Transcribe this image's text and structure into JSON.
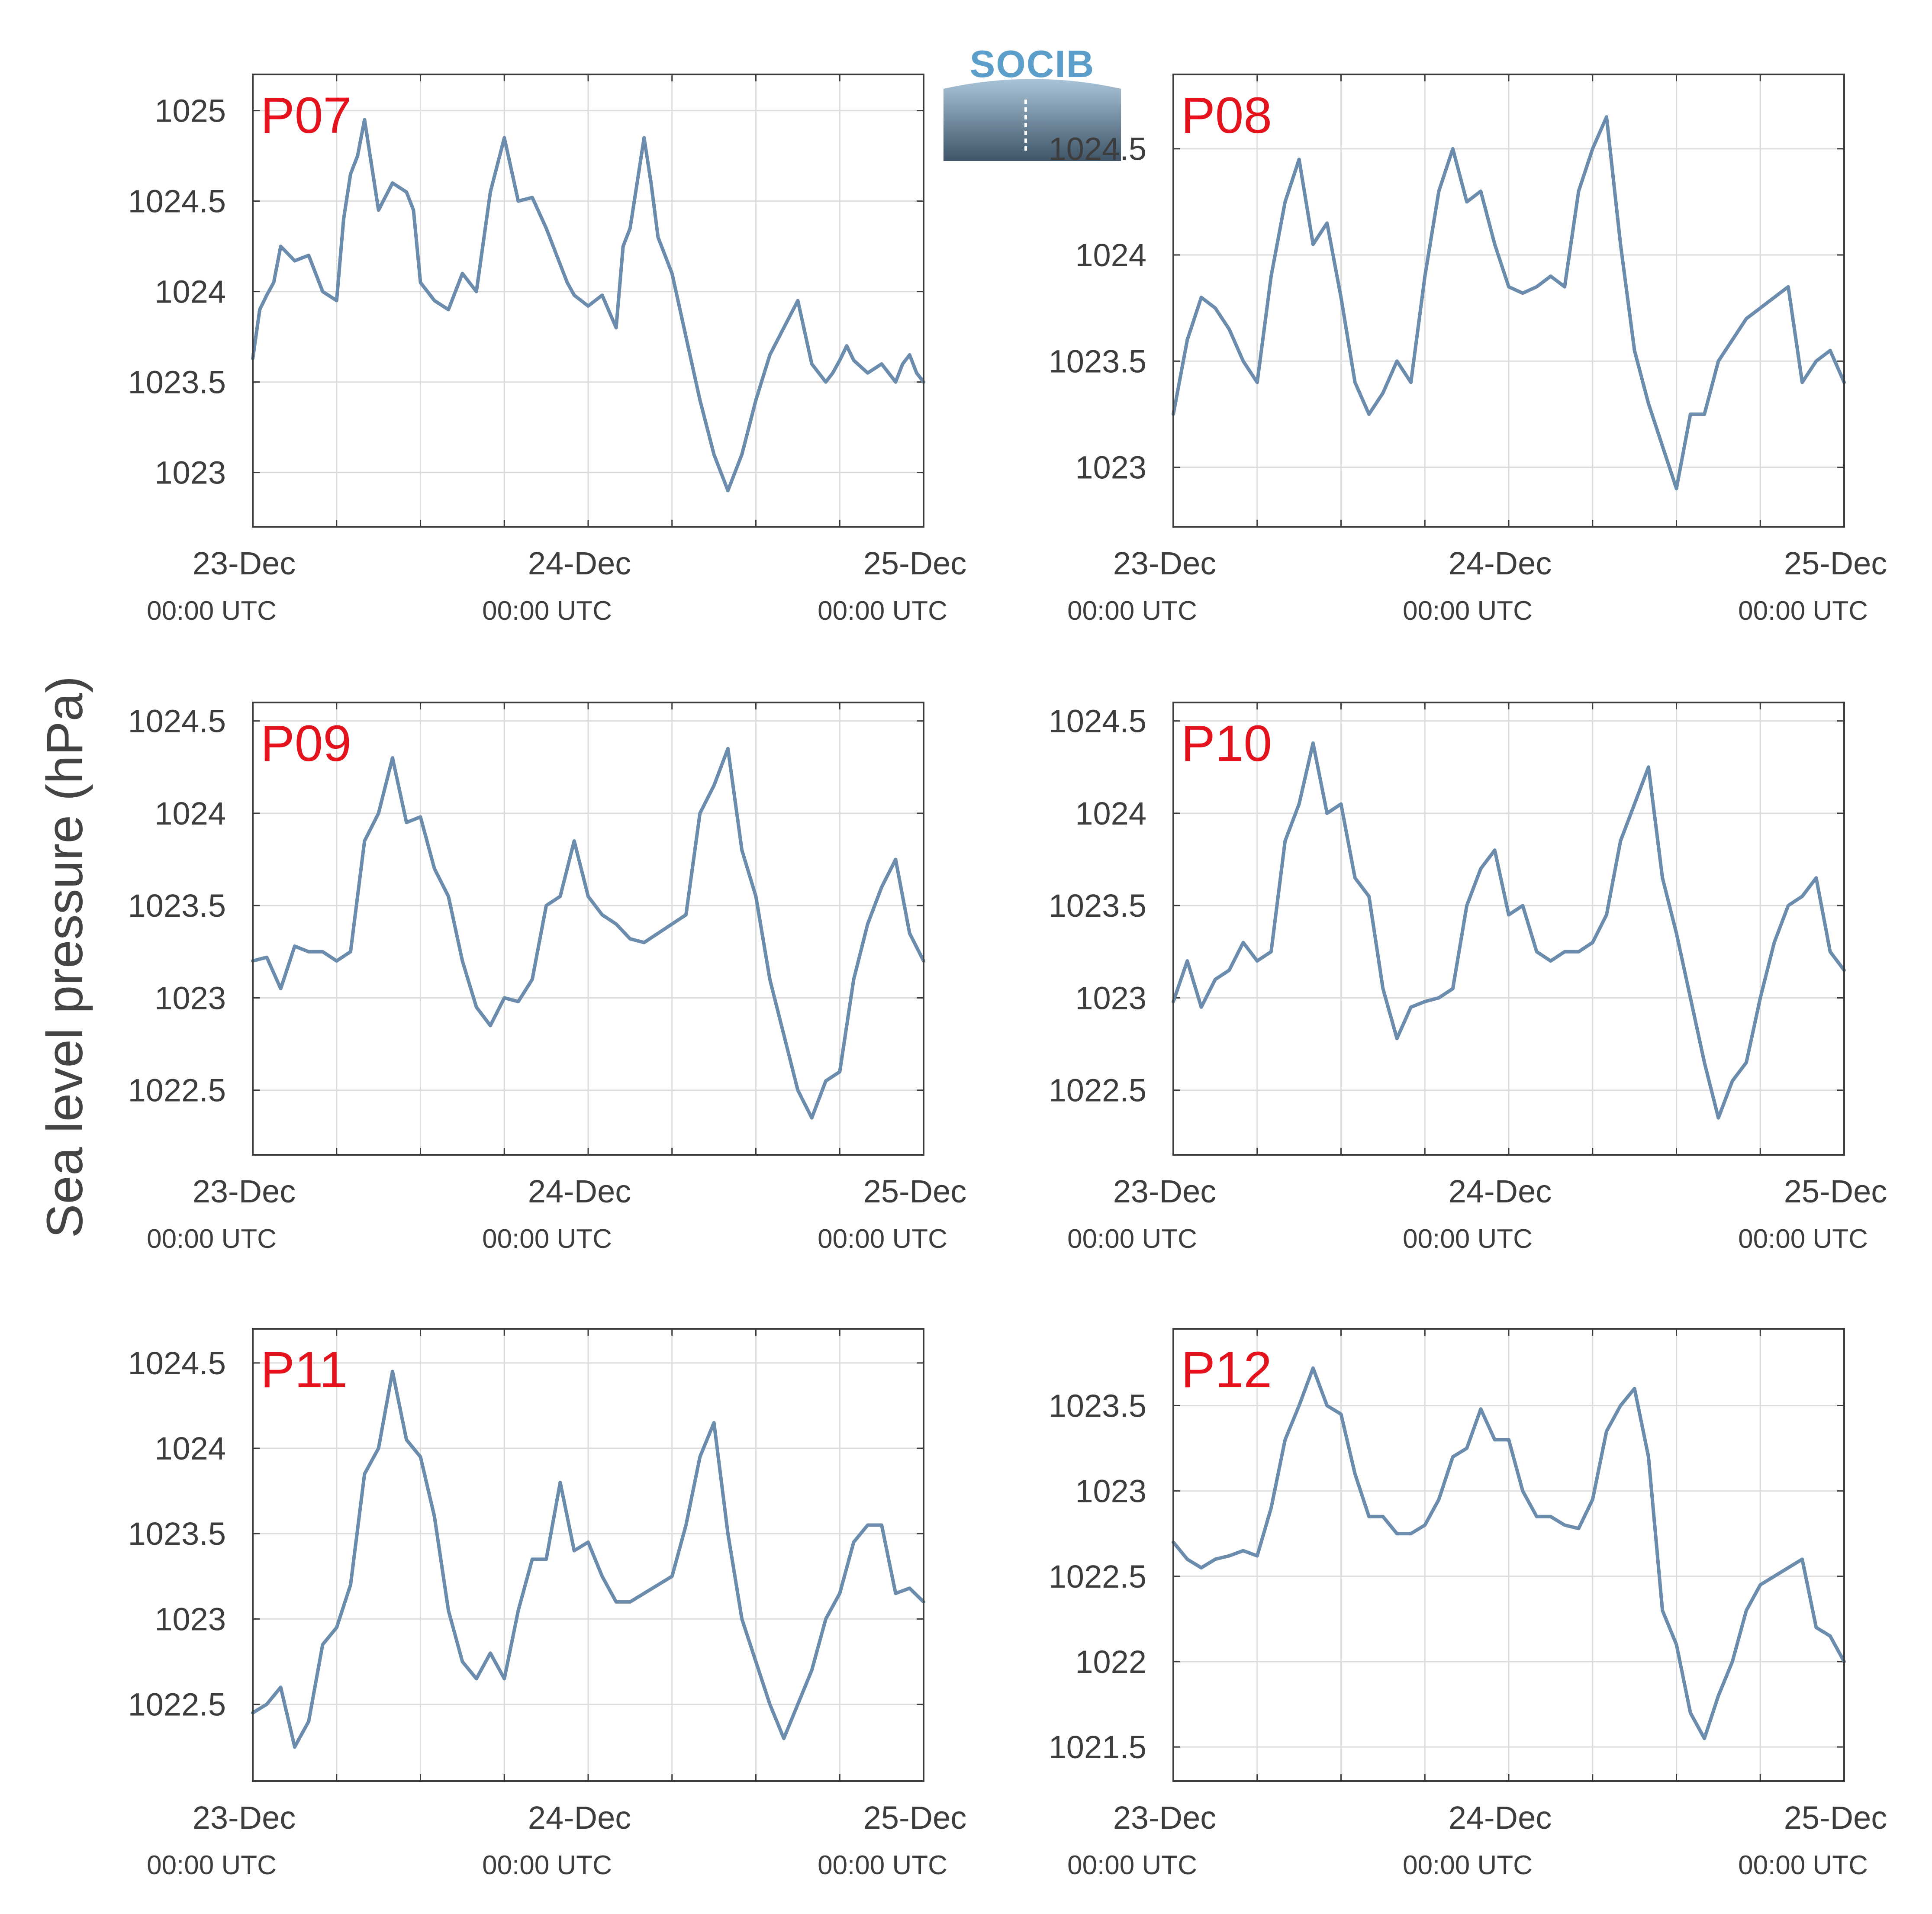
{
  "logo": {
    "text": "SOCIB",
    "color": "#5a9ec9"
  },
  "ylabel": "Sea level pressure (hPa)",
  "style": {
    "line_color": "#6b8cad",
    "panel_label_color": "#e3121c",
    "grid_color": "#dcdcdc",
    "axis_color": "#3c3c3c"
  },
  "chart_data": [
    {
      "type": "line",
      "panel_label": "P07",
      "ylim": [
        1022.7,
        1025.2
      ],
      "yticks": [
        1023,
        1023.5,
        1024,
        1024.5,
        1025
      ],
      "ytick_labels": [
        "1023",
        "1023.5",
        "1024",
        "1024.5",
        "1025"
      ],
      "xlim": [
        0,
        48
      ],
      "xticks": [
        0,
        24,
        48
      ],
      "xtick_labels": [
        "23-Dec",
        "24-Dec",
        "25-Dec"
      ],
      "xtick_sublabels": [
        "00:00 UTC",
        "00:00 UTC",
        "00:00 UTC"
      ],
      "grid": true,
      "series": [
        {
          "x": [
            0,
            0.5,
            1,
            1.5,
            2,
            3,
            4,
            5,
            6,
            6.5,
            7,
            7.5,
            8,
            9,
            10,
            11,
            11.5,
            12,
            13,
            14,
            15,
            16,
            17,
            18,
            19,
            20,
            21,
            22,
            22.5,
            23,
            24,
            25,
            26,
            26.5,
            27,
            28,
            28.5,
            29,
            30,
            31,
            32,
            33,
            34,
            35,
            36,
            37,
            38,
            39,
            40,
            41,
            41.5,
            42,
            42.5,
            43,
            44,
            45,
            46,
            46.5,
            47,
            47.5,
            48
          ],
          "y": [
            1023.63,
            1023.9,
            1023.98,
            1024.05,
            1024.25,
            1024.17,
            1024.2,
            1024.0,
            1023.95,
            1024.4,
            1024.65,
            1024.75,
            1024.95,
            1024.45,
            1024.6,
            1024.55,
            1024.45,
            1024.05,
            1023.95,
            1023.9,
            1024.1,
            1024.0,
            1024.55,
            1024.85,
            1024.5,
            1024.52,
            1024.35,
            1024.15,
            1024.05,
            1023.98,
            1023.92,
            1023.98,
            1023.8,
            1024.25,
            1024.35,
            1024.85,
            1024.6,
            1024.3,
            1024.1,
            1023.75,
            1023.4,
            1023.1,
            1022.9,
            1023.1,
            1023.4,
            1023.65,
            1023.8,
            1023.95,
            1023.6,
            1023.5,
            1023.55,
            1023.62,
            1023.7,
            1023.62,
            1023.55,
            1023.6,
            1023.5,
            1023.6,
            1023.65,
            1023.55,
            1023.5
          ]
        }
      ]
    },
    {
      "type": "line",
      "panel_label": "P08",
      "ylim": [
        1022.72,
        1024.85
      ],
      "yticks": [
        1023,
        1023.5,
        1024,
        1024.5
      ],
      "ytick_labels": [
        "1023",
        "1023.5",
        "1024",
        "1024.5"
      ],
      "xlim": [
        0,
        48
      ],
      "xticks": [
        0,
        24,
        48
      ],
      "xtick_labels": [
        "23-Dec",
        "24-Dec",
        "25-Dec"
      ],
      "xtick_sublabels": [
        "00:00 UTC",
        "00:00 UTC",
        "00:00 UTC"
      ],
      "grid": true,
      "series": [
        {
          "x": [
            0,
            1,
            2,
            3,
            4,
            5,
            6,
            7,
            8,
            9,
            10,
            11,
            12,
            13,
            14,
            15,
            16,
            17,
            18,
            19,
            20,
            21,
            22,
            23,
            24,
            25,
            26,
            27,
            28,
            29,
            30,
            31,
            32,
            33,
            34,
            35,
            36,
            37,
            38,
            39,
            40,
            41,
            42,
            43,
            44,
            45,
            46,
            47,
            48
          ],
          "y": [
            1023.25,
            1023.6,
            1023.8,
            1023.75,
            1023.65,
            1023.5,
            1023.4,
            1023.9,
            1024.25,
            1024.45,
            1024.05,
            1024.15,
            1023.8,
            1023.4,
            1023.25,
            1023.35,
            1023.5,
            1023.4,
            1023.9,
            1024.3,
            1024.5,
            1024.25,
            1024.3,
            1024.05,
            1023.85,
            1023.82,
            1023.85,
            1023.9,
            1023.85,
            1024.3,
            1024.5,
            1024.65,
            1024.05,
            1023.55,
            1023.3,
            1023.1,
            1022.9,
            1023.25,
            1023.25,
            1023.5,
            1023.6,
            1023.7,
            1023.75,
            1023.8,
            1023.85,
            1023.4,
            1023.5,
            1023.55,
            1023.4
          ]
        }
      ]
    },
    {
      "type": "line",
      "panel_label": "P09",
      "ylim": [
        1022.15,
        1024.6
      ],
      "yticks": [
        1022.5,
        1023,
        1023.5,
        1024,
        1024.5
      ],
      "ytick_labels": [
        "1022.5",
        "1023",
        "1023.5",
        "1024",
        "1024.5"
      ],
      "xlim": [
        0,
        48
      ],
      "xticks": [
        0,
        24,
        48
      ],
      "xtick_labels": [
        "23-Dec",
        "24-Dec",
        "25-Dec"
      ],
      "xtick_sublabels": [
        "00:00 UTC",
        "00:00 UTC",
        "00:00 UTC"
      ],
      "grid": true,
      "series": [
        {
          "x": [
            0,
            1,
            2,
            3,
            4,
            5,
            6,
            7,
            8,
            9,
            10,
            11,
            12,
            13,
            14,
            15,
            16,
            17,
            18,
            19,
            20,
            21,
            22,
            23,
            24,
            25,
            26,
            27,
            28,
            29,
            30,
            31,
            32,
            33,
            34,
            35,
            36,
            37,
            38,
            39,
            40,
            41,
            42,
            43,
            44,
            45,
            46,
            47,
            48
          ],
          "y": [
            1023.2,
            1023.22,
            1023.05,
            1023.28,
            1023.25,
            1023.25,
            1023.2,
            1023.25,
            1023.85,
            1024.0,
            1024.3,
            1023.95,
            1023.98,
            1023.7,
            1023.55,
            1023.2,
            1022.95,
            1022.85,
            1023.0,
            1022.98,
            1023.1,
            1023.5,
            1023.55,
            1023.85,
            1023.55,
            1023.45,
            1023.4,
            1023.32,
            1023.3,
            1023.35,
            1023.4,
            1023.45,
            1024.0,
            1024.15,
            1024.35,
            1023.8,
            1023.55,
            1023.1,
            1022.8,
            1022.5,
            1022.35,
            1022.55,
            1022.6,
            1023.1,
            1023.4,
            1023.6,
            1023.75,
            1023.35,
            1023.2
          ]
        }
      ]
    },
    {
      "type": "line",
      "panel_label": "P10",
      "ylim": [
        1022.15,
        1024.6
      ],
      "yticks": [
        1022.5,
        1023,
        1023.5,
        1024,
        1024.5
      ],
      "ytick_labels": [
        "1022.5",
        "1023",
        "1023.5",
        "1024",
        "1024.5"
      ],
      "xlim": [
        0,
        48
      ],
      "xticks": [
        0,
        24,
        48
      ],
      "xtick_labels": [
        "23-Dec",
        "24-Dec",
        "25-Dec"
      ],
      "xtick_sublabels": [
        "00:00 UTC",
        "00:00 UTC",
        "00:00 UTC"
      ],
      "grid": true,
      "series": [
        {
          "x": [
            0,
            1,
            2,
            3,
            4,
            5,
            6,
            7,
            8,
            9,
            10,
            11,
            12,
            13,
            14,
            15,
            16,
            17,
            18,
            19,
            20,
            21,
            22,
            23,
            24,
            25,
            26,
            27,
            28,
            29,
            30,
            31,
            32,
            33,
            34,
            35,
            36,
            37,
            38,
            39,
            40,
            41,
            42,
            43,
            44,
            45,
            46,
            47,
            48
          ],
          "y": [
            1022.98,
            1023.2,
            1022.95,
            1023.1,
            1023.15,
            1023.3,
            1023.2,
            1023.25,
            1023.85,
            1024.05,
            1024.38,
            1024.0,
            1024.05,
            1023.65,
            1023.55,
            1023.05,
            1022.78,
            1022.95,
            1022.98,
            1023.0,
            1023.05,
            1023.5,
            1023.7,
            1023.8,
            1023.45,
            1023.5,
            1023.25,
            1023.2,
            1023.25,
            1023.25,
            1023.3,
            1023.45,
            1023.85,
            1024.05,
            1024.25,
            1023.65,
            1023.35,
            1023.0,
            1022.65,
            1022.35,
            1022.55,
            1022.65,
            1023.0,
            1023.3,
            1023.5,
            1023.55,
            1023.65,
            1023.25,
            1023.15
          ]
        }
      ]
    },
    {
      "type": "line",
      "panel_label": "P11",
      "ylim": [
        1022.05,
        1024.7
      ],
      "yticks": [
        1022.5,
        1023,
        1023.5,
        1024,
        1024.5
      ],
      "ytick_labels": [
        "1022.5",
        "1023",
        "1023.5",
        "1024",
        "1024.5"
      ],
      "xlim": [
        0,
        48
      ],
      "xticks": [
        0,
        24,
        48
      ],
      "xtick_labels": [
        "23-Dec",
        "24-Dec",
        "25-Dec"
      ],
      "xtick_sublabels": [
        "00:00 UTC",
        "00:00 UTC",
        "00:00 UTC"
      ],
      "grid": true,
      "series": [
        {
          "x": [
            0,
            1,
            2,
            3,
            4,
            5,
            6,
            7,
            8,
            9,
            10,
            11,
            12,
            13,
            14,
            15,
            16,
            17,
            18,
            19,
            20,
            21,
            22,
            23,
            24,
            25,
            26,
            27,
            28,
            29,
            30,
            31,
            32,
            33,
            34,
            35,
            36,
            37,
            38,
            39,
            40,
            41,
            42,
            43,
            44,
            45,
            46,
            47,
            48
          ],
          "y": [
            1022.45,
            1022.5,
            1022.6,
            1022.25,
            1022.4,
            1022.85,
            1022.95,
            1023.2,
            1023.85,
            1024.0,
            1024.45,
            1024.05,
            1023.95,
            1023.6,
            1023.05,
            1022.75,
            1022.65,
            1022.8,
            1022.65,
            1023.05,
            1023.35,
            1023.35,
            1023.8,
            1023.4,
            1023.45,
            1023.25,
            1023.1,
            1023.1,
            1023.15,
            1023.2,
            1023.25,
            1023.55,
            1023.95,
            1024.15,
            1023.5,
            1023.0,
            1022.75,
            1022.5,
            1022.3,
            1022.5,
            1022.7,
            1023.0,
            1023.15,
            1023.45,
            1023.55,
            1023.55,
            1023.15,
            1023.18,
            1023.1
          ]
        }
      ]
    },
    {
      "type": "line",
      "panel_label": "P12",
      "ylim": [
        1021.3,
        1023.95
      ],
      "yticks": [
        1021.5,
        1022,
        1022.5,
        1023,
        1023.5
      ],
      "ytick_labels": [
        "1021.5",
        "1022",
        "1022.5",
        "1023",
        "1023.5"
      ],
      "xlim": [
        0,
        48
      ],
      "xticks": [
        0,
        24,
        48
      ],
      "xtick_labels": [
        "23-Dec",
        "24-Dec",
        "25-Dec"
      ],
      "xtick_sublabels": [
        "00:00 UTC",
        "00:00 UTC",
        "00:00 UTC"
      ],
      "grid": true,
      "series": [
        {
          "x": [
            0,
            1,
            2,
            3,
            4,
            5,
            6,
            7,
            8,
            9,
            10,
            11,
            12,
            13,
            14,
            15,
            16,
            17,
            18,
            19,
            20,
            21,
            22,
            23,
            24,
            25,
            26,
            27,
            28,
            29,
            30,
            31,
            32,
            33,
            34,
            35,
            36,
            37,
            38,
            39,
            40,
            41,
            42,
            43,
            44,
            45,
            46,
            47,
            48
          ],
          "y": [
            1022.7,
            1022.6,
            1022.55,
            1022.6,
            1022.62,
            1022.65,
            1022.62,
            1022.9,
            1023.3,
            1023.5,
            1023.72,
            1023.5,
            1023.45,
            1023.1,
            1022.85,
            1022.85,
            1022.75,
            1022.75,
            1022.8,
            1022.95,
            1023.2,
            1023.25,
            1023.48,
            1023.3,
            1023.3,
            1023.0,
            1022.85,
            1022.85,
            1022.8,
            1022.78,
            1022.95,
            1023.35,
            1023.5,
            1023.6,
            1023.2,
            1022.3,
            1022.1,
            1021.7,
            1021.55,
            1021.8,
            1022.0,
            1022.3,
            1022.45,
            1022.5,
            1022.55,
            1022.6,
            1022.2,
            1022.15,
            1022.0
          ]
        }
      ]
    }
  ]
}
